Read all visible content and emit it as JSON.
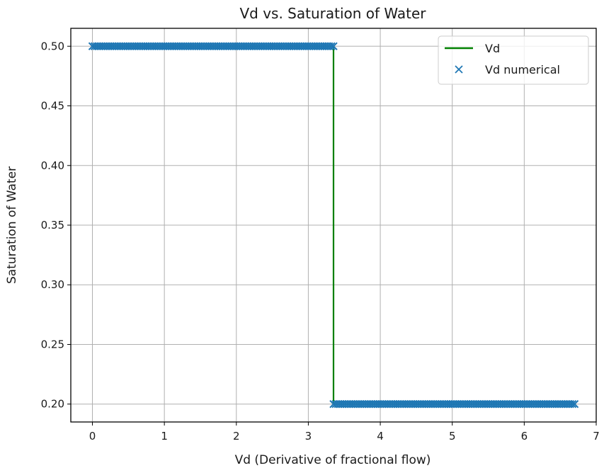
{
  "chart_data": {
    "type": "line",
    "title": "Vd vs. Saturation of Water",
    "xlabel": "Vd (Derivative of fractional flow)",
    "ylabel": "Saturation of Water",
    "xlim": [
      -0.3,
      7.0
    ],
    "ylim": [
      0.185,
      0.515
    ],
    "xticks": [
      0,
      1,
      2,
      3,
      4,
      5,
      6,
      7
    ],
    "yticks": [
      0.2,
      0.25,
      0.3,
      0.35,
      0.4,
      0.45,
      0.5
    ],
    "xtick_labels": [
      "0",
      "1",
      "2",
      "3",
      "4",
      "5",
      "6",
      "7"
    ],
    "ytick_labels": [
      "0.20",
      "0.25",
      "0.30",
      "0.35",
      "0.40",
      "0.45",
      "0.50"
    ],
    "grid": true,
    "legend": {
      "placement": "top-right",
      "entries": [
        "Vd",
        "Vd numerical"
      ]
    },
    "series": [
      {
        "name": "Vd",
        "kind": "line",
        "color": "#008000",
        "x": [
          0.0,
          3.35,
          3.35,
          6.7
        ],
        "y": [
          0.5,
          0.5,
          0.2,
          0.2
        ]
      },
      {
        "name": "Vd numerical",
        "kind": "scatter",
        "marker": "x",
        "color": "#1f77b4",
        "segments": [
          {
            "x_start": 0.0,
            "x_end": 3.35,
            "y": 0.5
          },
          {
            "x_start": 3.35,
            "x_end": 6.7,
            "y": 0.2
          }
        ],
        "points_per_segment": 110
      }
    ]
  }
}
